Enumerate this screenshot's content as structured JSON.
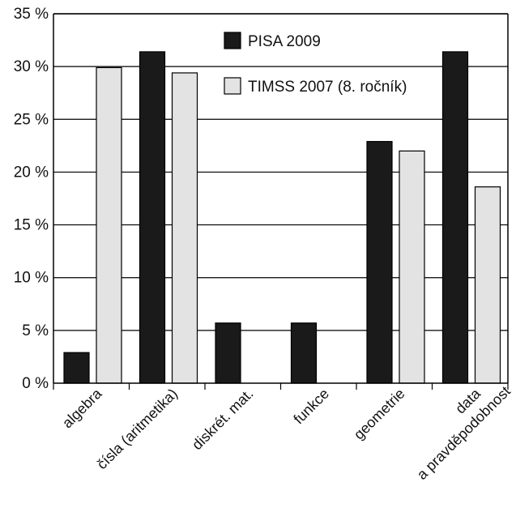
{
  "chart_data": {
    "type": "bar",
    "categories": [
      [
        "algebra"
      ],
      [
        "čísla (aritmetika)"
      ],
      [
        "diskrét. mat."
      ],
      [
        "funkce"
      ],
      [
        "geometrie"
      ],
      [
        "data",
        "a pravděpodobnost"
      ]
    ],
    "series": [
      {
        "name": "PISA 2009",
        "color": "#1a1a1a",
        "values": [
          2.9,
          31.4,
          5.7,
          5.7,
          22.9,
          31.4
        ]
      },
      {
        "name": "TIMSS 2007 (8. ročník)",
        "color": "#e3e3e3",
        "values": [
          29.9,
          29.4,
          0,
          0,
          22.0,
          18.6
        ]
      }
    ],
    "ylim": [
      0,
      35
    ],
    "yticks": [
      0,
      5,
      10,
      15,
      20,
      25,
      30,
      35
    ],
    "ytick_labels": [
      "0 %",
      "5 %",
      "10 %",
      "15 %",
      "20 %",
      "25 %",
      "30 %",
      "35 %"
    ],
    "grid": true,
    "legend_position": "top-right",
    "xlabel": "",
    "ylabel": "",
    "title": ""
  }
}
